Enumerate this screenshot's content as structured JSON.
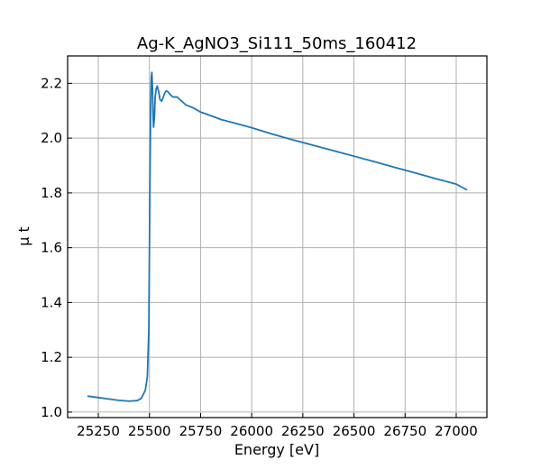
{
  "chart_data": {
    "type": "line",
    "title": "Ag-K_AgNO3_Si111_50ms_160412",
    "xlabel": "Energy [eV]",
    "ylabel": "μ t",
    "xlim": [
      25100,
      27150
    ],
    "ylim": [
      0.98,
      2.3
    ],
    "xticks": [
      25250,
      25500,
      25750,
      26000,
      26250,
      26500,
      26750,
      27000
    ],
    "yticks": [
      1.0,
      1.2,
      1.4,
      1.6,
      1.8,
      2.0,
      2.2
    ],
    "grid": true,
    "color": "#1f77b4",
    "series": [
      {
        "x": [
          25200,
          25250,
          25300,
          25350,
          25400,
          25440,
          25460,
          25480,
          25490,
          25497,
          25502,
          25506,
          25509,
          25512,
          25515,
          25518,
          25520,
          25524,
          25528,
          25533,
          25538,
          25545,
          25552,
          25560,
          25568,
          25575,
          25582,
          25590,
          25600,
          25615,
          25625,
          25635,
          25650,
          25665,
          25680,
          25700,
          25720,
          25750,
          25800,
          25850,
          25900,
          25950,
          26000,
          26100,
          26200,
          26300,
          26400,
          26500,
          26600,
          26700,
          26800,
          26900,
          27000,
          27050
        ],
        "y": [
          1.058,
          1.053,
          1.048,
          1.043,
          1.04,
          1.042,
          1.05,
          1.08,
          1.13,
          1.3,
          1.8,
          2.12,
          2.22,
          2.24,
          2.18,
          2.08,
          2.04,
          2.07,
          2.15,
          2.18,
          2.19,
          2.17,
          2.14,
          2.135,
          2.15,
          2.165,
          2.172,
          2.17,
          2.16,
          2.15,
          2.15,
          2.15,
          2.14,
          2.13,
          2.12,
          2.115,
          2.108,
          2.095,
          2.082,
          2.068,
          2.058,
          2.048,
          2.038,
          2.015,
          1.994,
          1.974,
          1.954,
          1.934,
          1.914,
          1.893,
          1.873,
          1.852,
          1.832,
          1.812
        ]
      }
    ]
  }
}
